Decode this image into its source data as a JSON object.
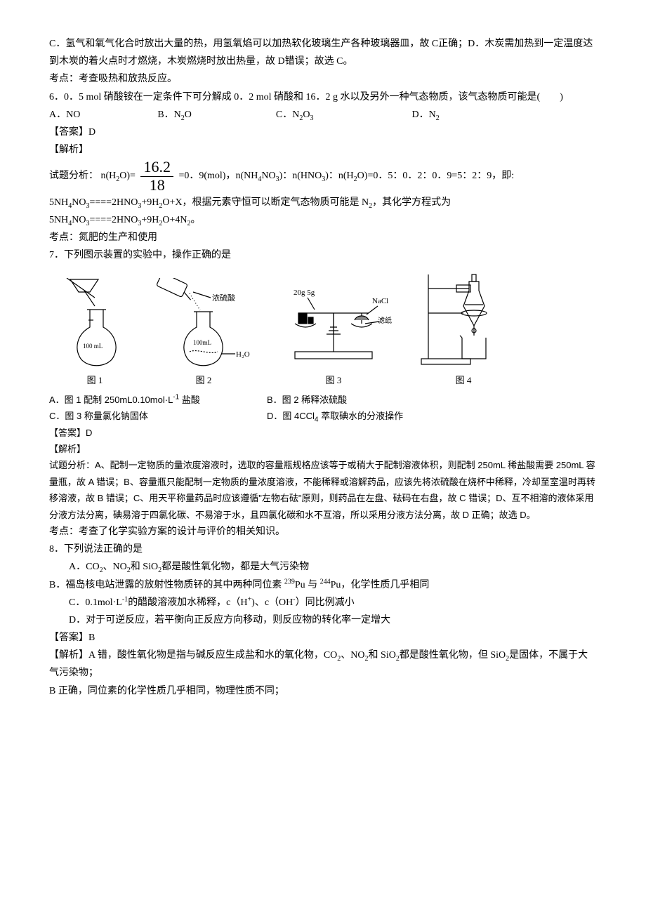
{
  "intro": {
    "lineC": "C．氢气和氧气化合时放出大量的热，用氢氧焰可以加热软化玻璃生产各种玻璃器皿，故 C正确；D．木炭需加热到一定温度达到木炭的着火点时才燃烧，木炭燃烧时放出热量，故 D错误；故选 C。",
    "kaodian": "考点：考查吸热和放热反应。"
  },
  "q6": {
    "stem": "6．0．5 mol 硝酸铵在一定条件下可分解成 0．2 mol 硝酸和 16．2 g 水以及另外一种气态物质，该气态物质可能是(　　)",
    "optA": "A．NO",
    "optB": "B．N",
    "optB_html": "B．N<sub>2</sub>O",
    "optC_html": "C．N<sub>2</sub>O<sub>3</sub>",
    "optD_html": "D．N<sub>2</sub>",
    "ans": "【答案】D",
    "jiexi": "【解析】",
    "frac_num": "16.2",
    "frac_den": "18",
    "analysis_pre": "试题分析： n(H",
    "analysis_1": "试题分析： n(H<sub>2</sub>O)= ",
    "analysis_2": " =0．9(mol)，n(NH<sub>4</sub>NO<sub>3</sub>)：n(HNO<sub>3</sub>)：n(H<sub>2</sub>O)=0．5：0．2：0．9=5：2：9，即: 5NH<sub>4</sub>NO<sub>3</sub>====2HNO<sub>3</sub>+9H<sub>2</sub>O+X，根据元素守恒可以断定气态物质可能是 N<sub>2</sub>，其化学方程式为 5NH<sub>4</sub>NO<sub>3</sub>====2HNO<sub>3</sub>+9H<sub>2</sub>O+4N<sub>2</sub>。",
    "kaodian": "考点：氮肥的生产和使用"
  },
  "q7": {
    "stem": "7．下列图示装置的实验中，操作正确的是",
    "cap1": "图 1",
    "cap2": "图 2",
    "cap3": "图 3",
    "cap4": "图 4",
    "optA": "A．图 1 配制 250mL0.10mol·L<sup>-1</sup> 盐酸",
    "optB": "B．图 2 稀释浓硫酸",
    "optC": "C．图 3 称量氯化钠固体",
    "optD": "D．图 4CCl<sub>4</sub> 萃取碘水的分液操作",
    "ans": "【答案】D",
    "jiexi": "【解析】",
    "analysis": "试题分析：A、配制一定物质的量浓度溶液时，选取的容量瓶规格应该等于或稍大于配制溶液体积，则配制 250mL 稀盐酸需要 250mL 容量瓶，故 A 错误；B、容量瓶只能配制一定物质的量浓度溶液，不能稀释或溶解药品，应该先将浓硫酸在烧杯中稀释，冷却至室温时再转移溶液，故 B 错误；C、用天平称量药品时应该遵循\"左物右砝\"原则，则药品在左盘、砝码在右盘，故 C 错误；D、互不相溶的液体采用分液方法分离，碘易溶于四氯化碳、不易溶于水，且四氯化碳和水不互溶，所以采用分液方法分离，故 D 正确；故选 D。",
    "kaodian": "考点：考查了化学实验方案的设计与评价的相关知识。",
    "svg1_label1": "100 mL",
    "svg2_label1": "浓硫酸",
    "svg2_label2": "100mL",
    "svg2_label3": "H₂O",
    "svg3_label1": "20g 5g",
    "svg3_label2": "NaCl",
    "svg3_label3": "滤纸"
  },
  "q8": {
    "stem": "8．下列说法正确的是",
    "optA": "A．CO<sub>2</sub>、NO<sub>2</sub>和 SiO<sub>2</sub>都是酸性氧化物，都是大气污染物",
    "optB": "B．福岛核电站泄露的放射性物质钚的其中两种同位素 <sup>239</sup>Pu 与 <sup>244</sup>Pu，化学性质几乎相同",
    "optC": "C．0.1mol·L<sup>-1</sup>的醋酸溶液加水稀释，c（H<sup>+</sup>)、c（OH<sup>-</sup>）同比例减小",
    "optD": "D．对于可逆反应，若平衡向正反应方向移动，则反应物的转化率一定增大",
    "ans": "【答案】B",
    "jiexiA": "【解析】A 错，酸性氧化物是指与碱反应生成盐和水的氧化物，CO<sub>2</sub>、NO<sub>2</sub>和 SiO<sub>2</sub>都是酸性氧化物，但 SiO<sub>2</sub>是固体，不属于大气污染物；",
    "jiexiB": "B 正确，同位素的化学性质几乎相同，物理性质不同；"
  }
}
